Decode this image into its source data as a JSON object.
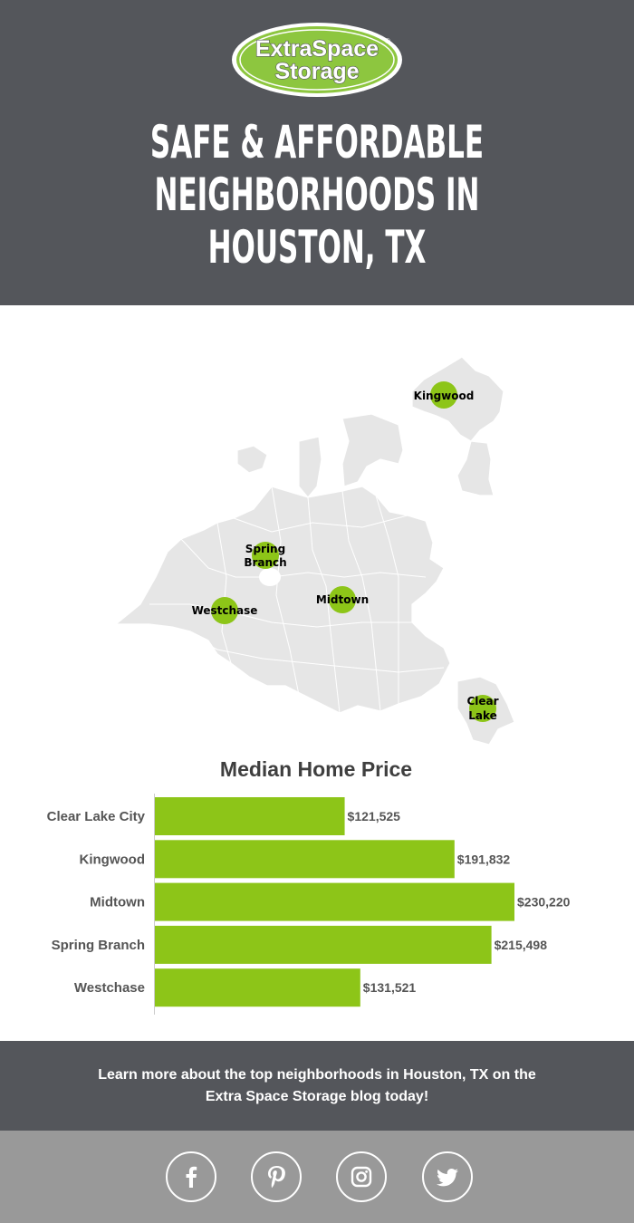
{
  "brand": {
    "line1": "ExtraSpace",
    "line2": "Storage",
    "registered": "®",
    "green": "#8dc63f",
    "gray": "#54565b"
  },
  "header": {
    "title_lines": [
      "SAFE & AFFORDABLE",
      "NEIGHBORHOODS IN",
      "HOUSTON, TX"
    ]
  },
  "map": {
    "markers": [
      {
        "lines": [
          "Kingwood"
        ]
      },
      {
        "lines": [
          "Spring",
          "Branch"
        ]
      },
      {
        "lines": [
          "Westchase"
        ]
      },
      {
        "lines": [
          "Midtown"
        ]
      },
      {
        "lines": [
          "Clear",
          "Lake"
        ]
      }
    ]
  },
  "chart_data": {
    "type": "bar",
    "orientation": "horizontal",
    "title": "Median Home Price",
    "categories": [
      "Clear Lake City",
      "Kingwood",
      "Midtown",
      "Spring Branch",
      "Westchase"
    ],
    "values": [
      121525,
      191832,
      230220,
      215498,
      131521
    ],
    "value_labels": [
      "$121,525",
      "$191,832",
      "$230,220",
      "$215,498",
      "$131,521"
    ],
    "xlim": [
      0,
      230220
    ],
    "color": "#8dc518",
    "grid": false
  },
  "cta": {
    "line1": "Learn more about the top neighborhoods in Houston, TX on the",
    "line2": "Extra Space Storage blog today!"
  },
  "social": [
    {
      "icon": "facebook-icon"
    },
    {
      "icon": "pinterest-icon"
    },
    {
      "icon": "instagram-icon"
    },
    {
      "icon": "twitter-icon"
    }
  ]
}
